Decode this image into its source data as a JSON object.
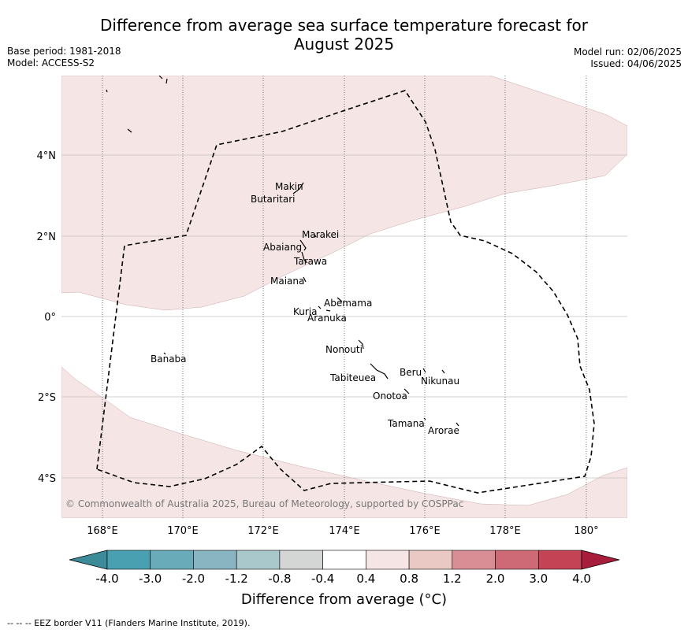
{
  "title_line1": "Difference from average sea surface temperature forecast for",
  "title_line2": "August 2025",
  "base_period": "Base period: 1981-2018",
  "model": "Model: ACCESS-S2",
  "model_run": "Model run: 02/06/2025",
  "issued": "Issued: 04/06/2025",
  "copyright": "© Commonwealth of Australia 2025, Bureau of Meteorology, supported by COSPPac",
  "lon_labels": [
    "168°E",
    "170°E",
    "172°E",
    "174°E",
    "176°E",
    "178°E",
    "180°"
  ],
  "lat_labels": [
    "4°N",
    "2°N",
    "0°",
    "2°S",
    "4°S"
  ],
  "islands": [
    "Makin",
    "Butaritari",
    "Marakei",
    "Abaiang",
    "Tarawa",
    "Maiana",
    "Abemama",
    "Kuria",
    "Aranuka",
    "Banaba",
    "Nonouti",
    "Tabiteuea",
    "Beru",
    "Nikunau",
    "Onotoa",
    "Tamana",
    "Arorae"
  ],
  "colorbar": {
    "ticks": [
      "-4.0",
      "-3.0",
      "-2.0",
      "-1.2",
      "-0.8",
      "-0.4",
      "0.4",
      "0.8",
      "1.2",
      "2.0",
      "3.0",
      "4.0"
    ],
    "colors": [
      "#3d8a98",
      "#48a0b0",
      "#69abb8",
      "#88b5c1",
      "#a8c8cc",
      "#d4d6d6",
      "#ffffff",
      "#f5e6e5",
      "#eac8c4",
      "#d98e95",
      "#cd6a75",
      "#c44456",
      "#a81d3c"
    ],
    "title": "Difference from average (°C)"
  },
  "anomaly_fill_color": "#f5e6e5",
  "footer": "--  --  -- EEZ border V11 (Flanders Marine Institute, 2019)."
}
